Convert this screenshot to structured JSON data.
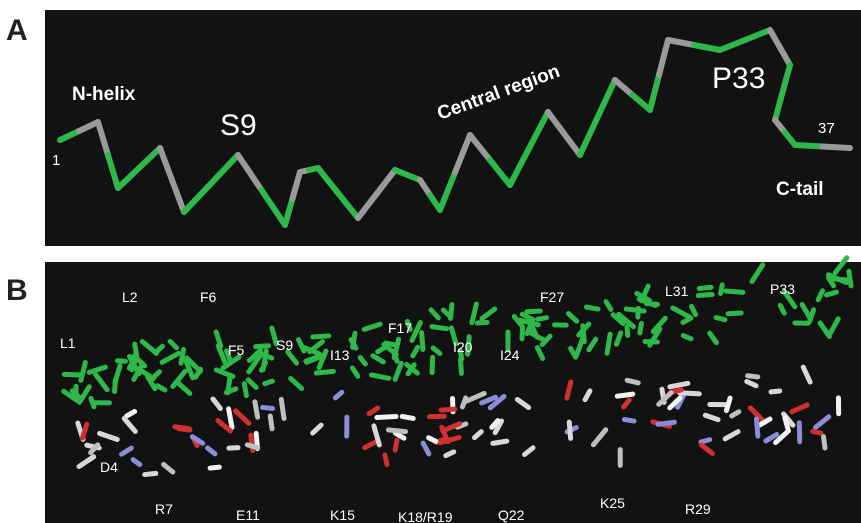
{
  "panel_a": {
    "label": "A",
    "n_helix": "N-helix",
    "s9": "S9",
    "central": "Central region",
    "p33": "P33",
    "end": "37",
    "start": "1",
    "c_tail": "C-tail"
  },
  "panel_b": {
    "label": "B",
    "residues": [
      "L1",
      "L2",
      "F6",
      "F5",
      "S9",
      "I13",
      "F17",
      "I20",
      "I24",
      "F27",
      "L31",
      "P33",
      "D4",
      "R7",
      "E11",
      "K15",
      "K18/R19",
      "Q22",
      "K25",
      "R29"
    ]
  }
}
